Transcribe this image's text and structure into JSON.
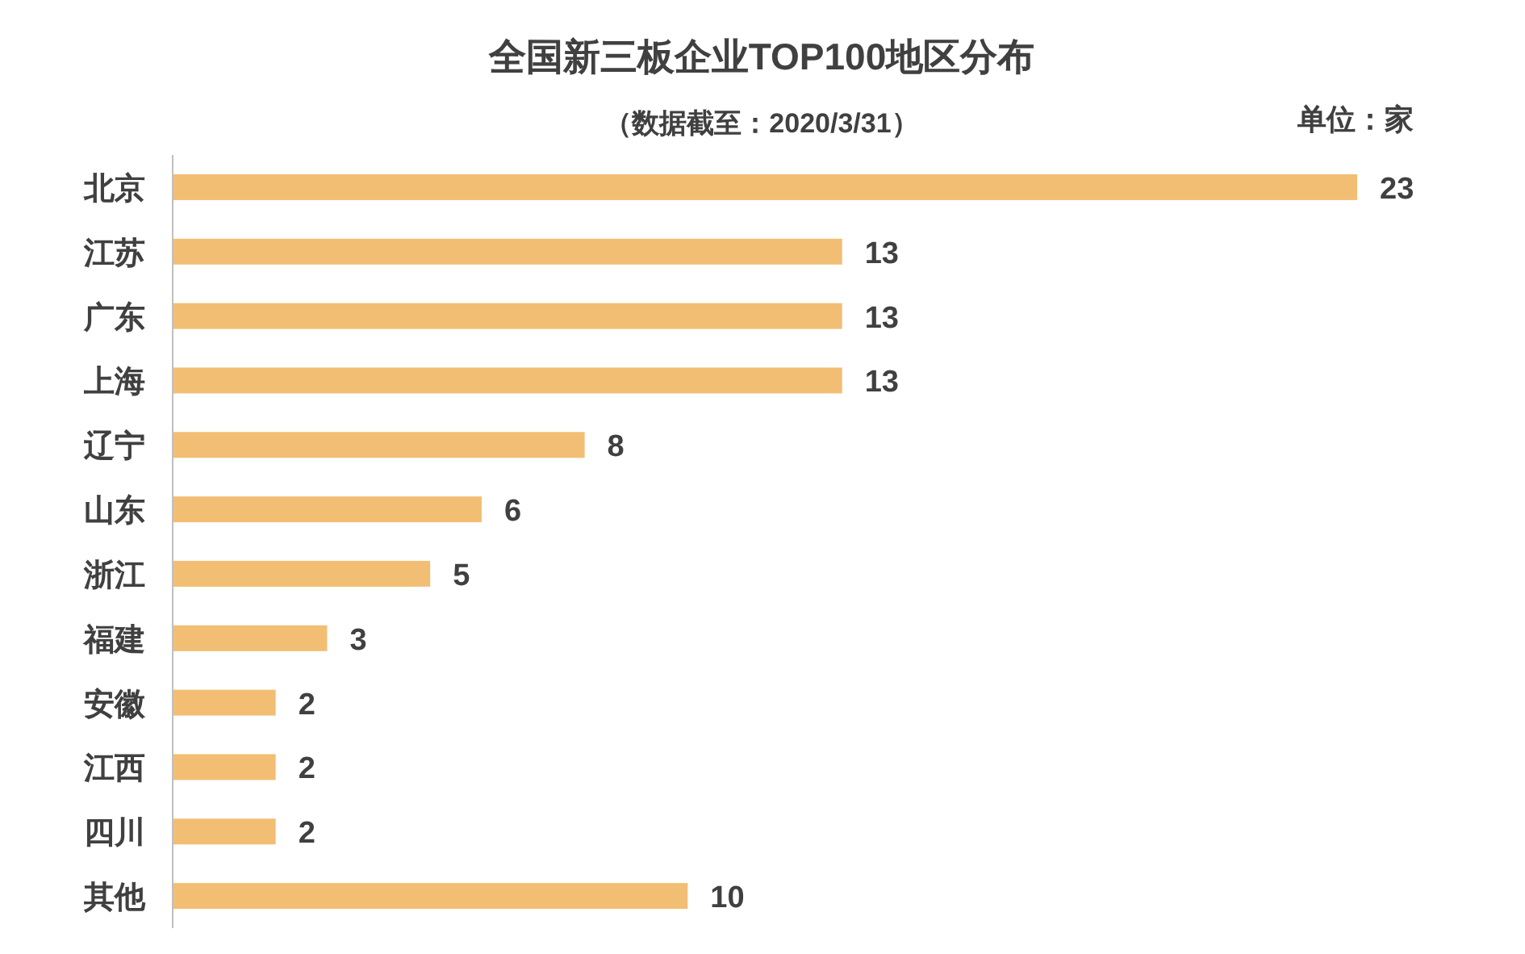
{
  "chart_data": {
    "type": "bar",
    "orientation": "horizontal",
    "title": "全国新三板企业TOP100地区分布",
    "subtitle": "（数据截至：2020/3/31）",
    "annotations": [
      "单位：家"
    ],
    "categories": [
      "北京",
      "江苏",
      "广东",
      "上海",
      "辽宁",
      "山东",
      "浙江",
      "福建",
      "安徽",
      "江西",
      "四川",
      "其他"
    ],
    "values": [
      23,
      13,
      13,
      13,
      8,
      6,
      5,
      3,
      2,
      2,
      2,
      10
    ],
    "color": "#f2be74",
    "data_labels": true
  }
}
